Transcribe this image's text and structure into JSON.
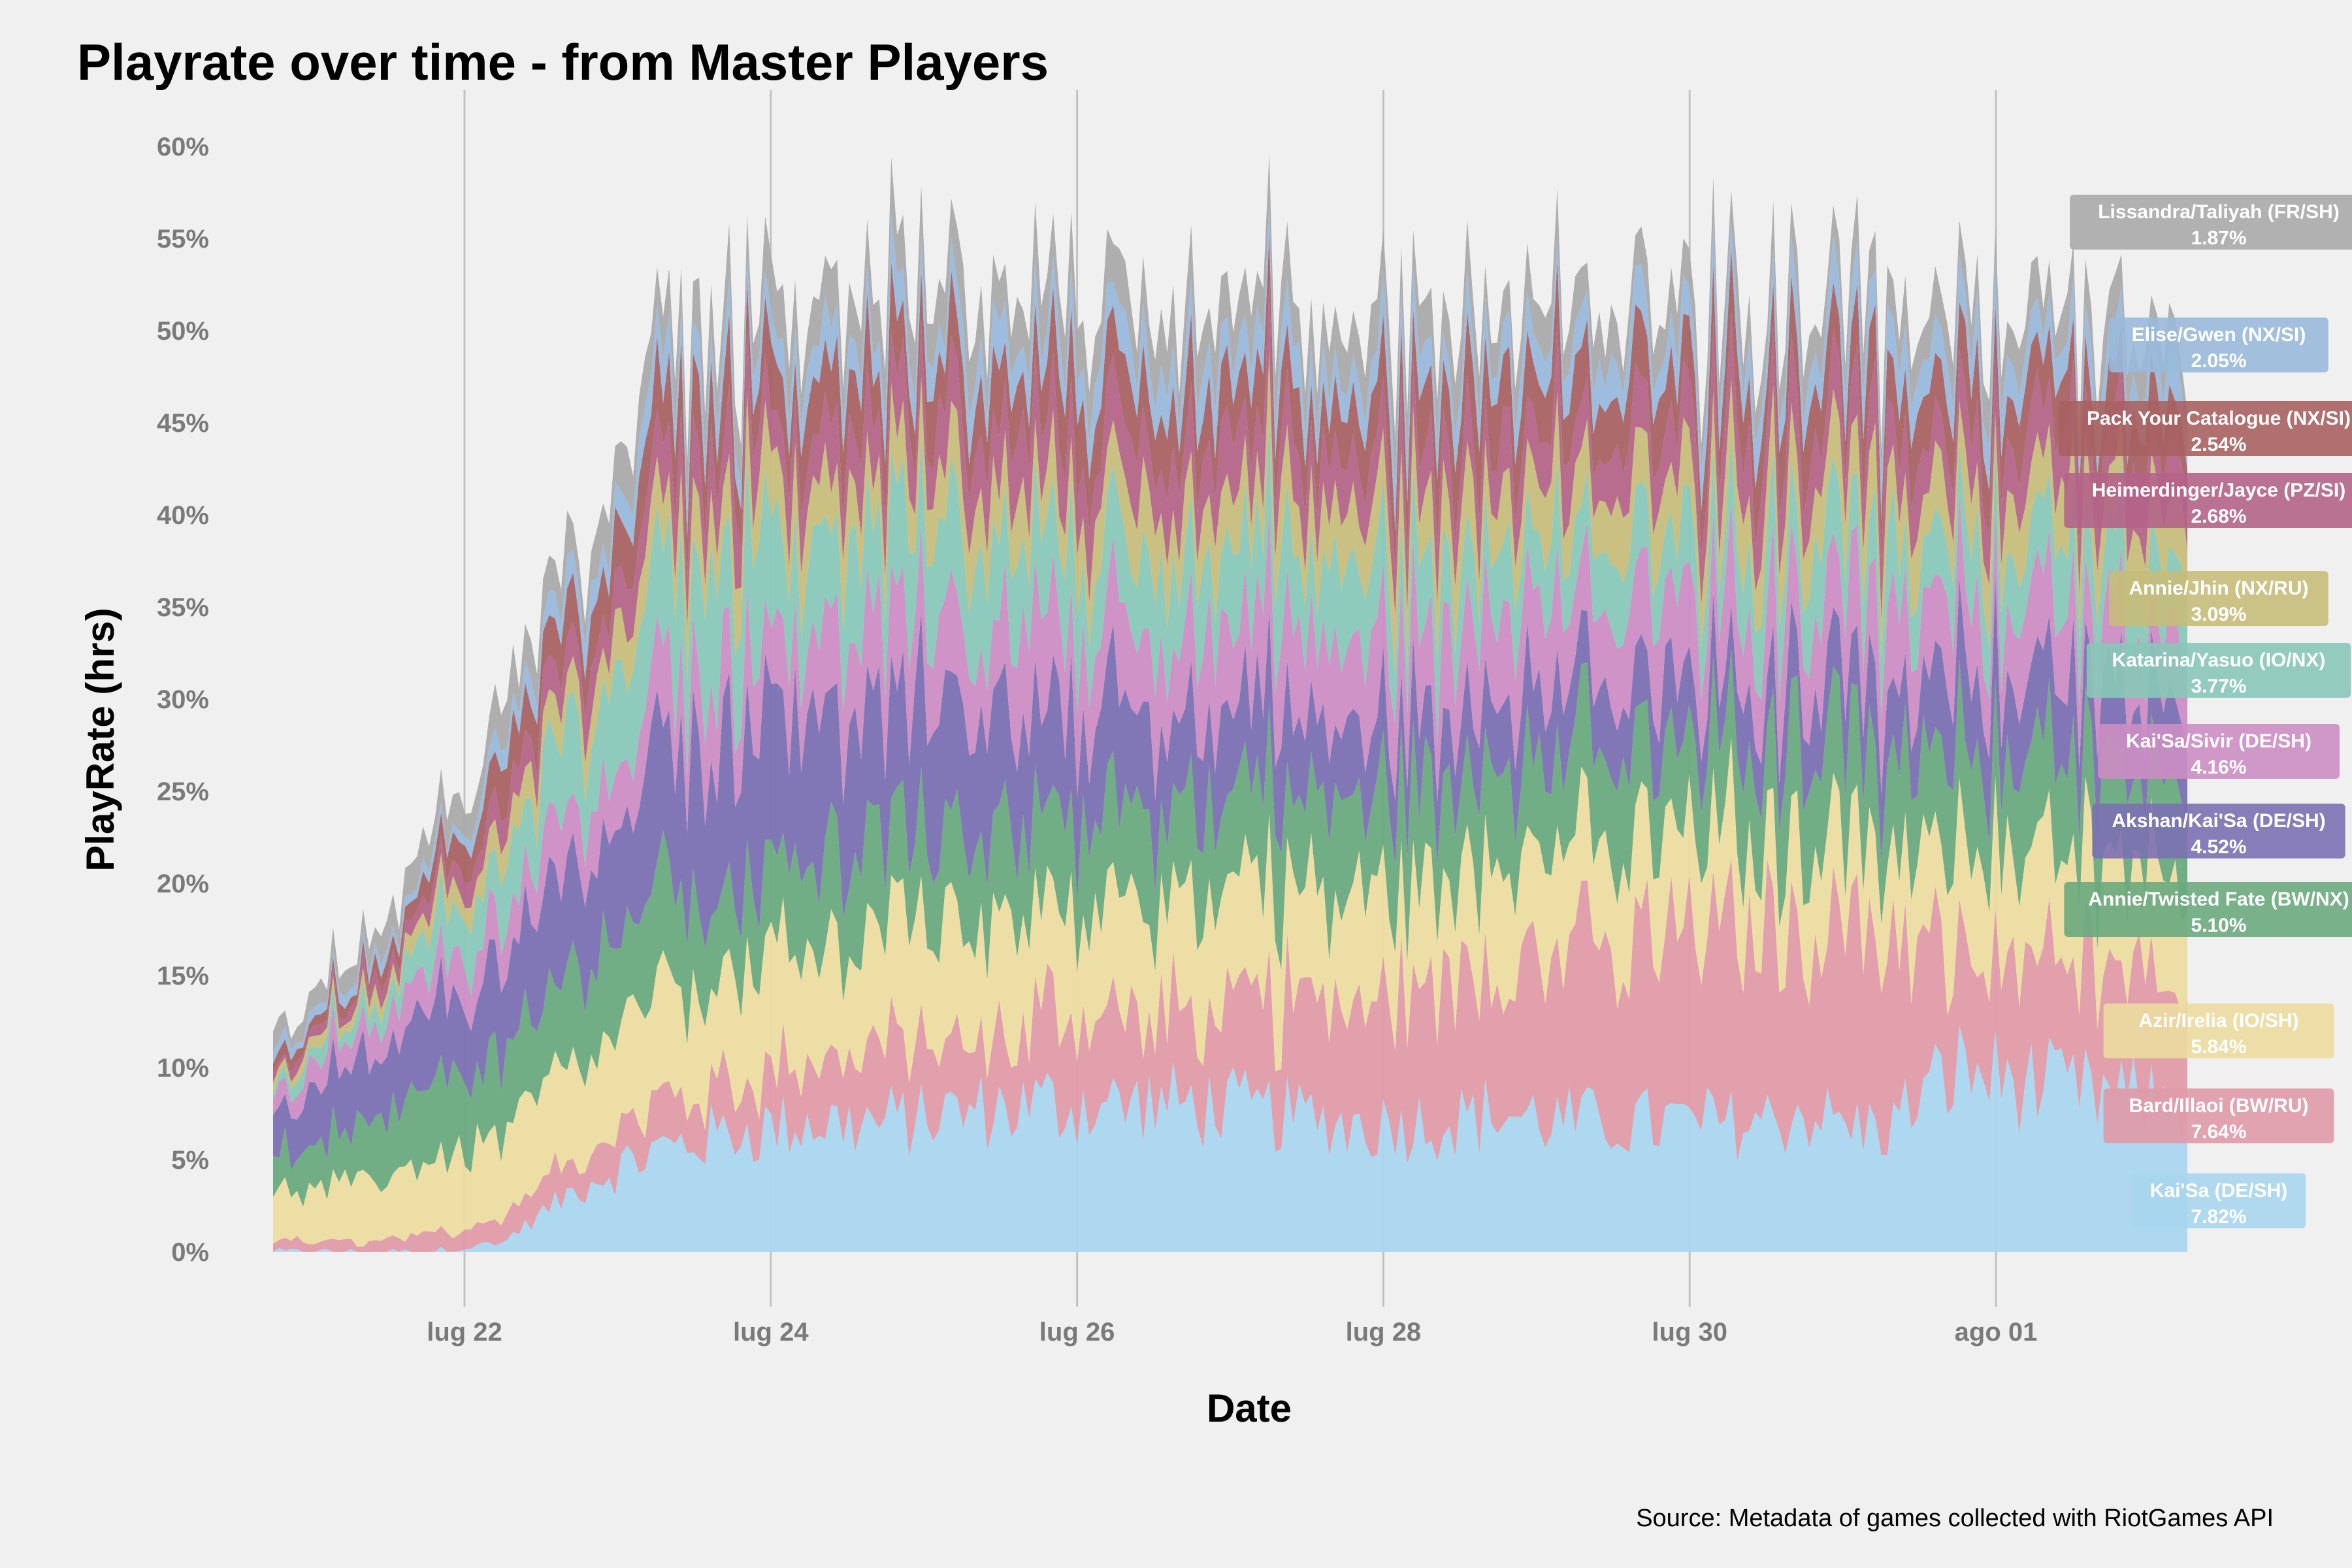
{
  "chart_data": {
    "type": "area",
    "title": "Playrate over time - from Master Players",
    "xlabel": "Date",
    "ylabel": "PlayRate (hrs)",
    "caption": "Source: Metadata of games collected with RiotGames API",
    "x_range": [
      "2021-07-20 18:00",
      "2021-08-02 06:00"
    ],
    "x_ticks": [
      {
        "date": "2021-07-22",
        "label": "lug 22"
      },
      {
        "date": "2021-07-24",
        "label": "lug 24"
      },
      {
        "date": "2021-07-26",
        "label": "lug 26"
      },
      {
        "date": "2021-07-28",
        "label": "lug 28"
      },
      {
        "date": "2021-07-30",
        "label": "lug 30"
      },
      {
        "date": "2021-08-01",
        "label": "ago 01"
      }
    ],
    "y_ticks": [
      0,
      5,
      10,
      15,
      20,
      25,
      30,
      35,
      40,
      45,
      50,
      55,
      60
    ],
    "y_tick_labels": [
      "0%",
      "5%",
      "10%",
      "15%",
      "20%",
      "25%",
      "30%",
      "35%",
      "40%",
      "45%",
      "50%",
      "55%",
      "60%"
    ],
    "ylim": [
      0,
      60
    ],
    "grid": "vertical",
    "legend": "labels at right end of each band",
    "x": [
      "2021-07-20 18:00",
      "2021-07-21 06:00",
      "2021-07-21 18:00",
      "2021-07-22 06:00",
      "2021-07-22 18:00",
      "2021-07-23 06:00",
      "2021-07-23 18:00",
      "2021-07-24 06:00",
      "2021-07-24 18:00",
      "2021-07-25 06:00",
      "2021-07-25 18:00",
      "2021-07-26 06:00",
      "2021-07-26 18:00",
      "2021-07-27 06:00",
      "2021-07-27 18:00",
      "2021-07-28 06:00",
      "2021-07-28 18:00",
      "2021-07-29 06:00",
      "2021-07-29 18:00",
      "2021-07-30 06:00",
      "2021-07-30 18:00",
      "2021-07-31 06:00",
      "2021-07-31 18:00",
      "2021-08-01 06:00",
      "2021-08-02 06:00"
    ],
    "series": [
      {
        "name": "Kai'Sa (DE/SH)",
        "label_value": "7.82%",
        "color": "#a9d6ee",
        "text_color": "#ffffff",
        "values": [
          0,
          0,
          0,
          0.5,
          3.5,
          5.5,
          6.5,
          7.0,
          7.0,
          7.5,
          8.0,
          8.0,
          8.0,
          7.5,
          7.0,
          7.0,
          7.5,
          7.0,
          7.0,
          7.0,
          7.5,
          6.5,
          10.0,
          9.0,
          7.8
        ]
      },
      {
        "name": "Bard/Illaoi (BW/RU)",
        "label_value": "7.64%",
        "color": "#e09aa8",
        "text_color": "#ffffff",
        "values": [
          0.5,
          0.5,
          0.8,
          1.5,
          2.0,
          2.5,
          3.0,
          3.5,
          4.0,
          4.0,
          4.5,
          4.5,
          5.0,
          6.0,
          6.5,
          8.0,
          8.5,
          9.0,
          9.5,
          10.0,
          10.5,
          11.0,
          5.5,
          6.5,
          7.6
        ]
      },
      {
        "name": "Azir/Irelia (IO/SH)",
        "label_value": "5.84%",
        "color": "#ecdca0",
        "text_color": "#ffffff",
        "values": [
          2.5,
          3.0,
          4.0,
          4.5,
          5.0,
          5.5,
          6.0,
          6.0,
          6.5,
          6.5,
          6.5,
          6.0,
          6.0,
          6.0,
          6.0,
          6.0,
          5.5,
          5.5,
          5.5,
          5.5,
          5.0,
          4.5,
          5.5,
          6.0,
          5.8
        ]
      },
      {
        "name": "Annie/Twisted Fate (BW/NX)",
        "label_value": "5.10%",
        "color": "#6aaa7e",
        "text_color": "#ffffff",
        "values": [
          2.0,
          3.0,
          4.0,
          4.5,
          5.0,
          5.0,
          5.0,
          5.0,
          5.0,
          5.0,
          5.0,
          5.0,
          5.0,
          5.0,
          5.0,
          5.0,
          5.0,
          5.0,
          5.0,
          5.0,
          5.0,
          4.5,
          5.0,
          5.0,
          5.1
        ]
      },
      {
        "name": "Akshan/Kai'Sa (DE/SH)",
        "label_value": "4.52%",
        "color": "#7b70b2",
        "text_color": "#ffffff",
        "values": [
          2.0,
          3.5,
          4.0,
          4.5,
          5.5,
          7.5,
          8.0,
          7.5,
          7.0,
          6.5,
          6.0,
          5.5,
          5.0,
          4.5,
          4.0,
          3.5,
          3.5,
          3.5,
          3.5,
          3.5,
          3.5,
          3.5,
          4.0,
          4.5,
          4.5
        ]
      },
      {
        "name": "Kai'Sa/Sivir (DE/SH)",
        "label_value": "4.16%",
        "color": "#cc8dc4",
        "text_color": "#ffffff",
        "values": [
          1.0,
          1.5,
          2.0,
          2.5,
          3.0,
          3.5,
          4.0,
          4.0,
          4.5,
          4.5,
          4.5,
          4.5,
          4.5,
          4.5,
          4.5,
          4.5,
          4.5,
          4.5,
          4.5,
          4.5,
          4.5,
          4.5,
          4.0,
          4.0,
          4.2
        ]
      },
      {
        "name": "Katarina/Yasuo (IO/NX)",
        "label_value": "3.77%",
        "color": "#88c8b8",
        "text_color": "#ffffff",
        "values": [
          0.5,
          1.0,
          2.0,
          3.0,
          4.5,
          5.5,
          6.0,
          5.5,
          5.0,
          5.0,
          4.5,
          4.5,
          4.0,
          4.0,
          4.0,
          3.5,
          3.5,
          3.5,
          3.5,
          3.5,
          3.5,
          3.5,
          3.5,
          3.5,
          3.8
        ]
      },
      {
        "name": "Annie/Jhin (NX/RU)",
        "label_value": "3.09%",
        "color": "#c6bd7a",
        "text_color": "#ffffff",
        "values": [
          0.5,
          0.5,
          1.0,
          1.5,
          2.0,
          2.5,
          3.0,
          3.0,
          3.0,
          3.0,
          3.0,
          3.0,
          3.0,
          3.0,
          3.0,
          3.0,
          3.0,
          3.0,
          3.0,
          3.0,
          3.0,
          3.0,
          3.0,
          3.0,
          3.1
        ]
      },
      {
        "name": "Heimerdinger/Jayce (PZ/SI)",
        "label_value": "2.68%",
        "color": "#b46488",
        "text_color": "#ffffff",
        "values": [
          0.5,
          0.5,
          1.0,
          1.5,
          2.0,
          2.5,
          3.0,
          3.0,
          3.0,
          3.0,
          3.0,
          3.0,
          3.0,
          3.0,
          3.0,
          3.0,
          3.0,
          3.0,
          3.0,
          3.0,
          3.0,
          3.0,
          3.0,
          2.8,
          2.7
        ]
      },
      {
        "name": "Pack Your Catalogue (NX/SI)",
        "label_value": "2.54%",
        "color": "#a86262",
        "text_color": "#ffffff",
        "values": [
          0.5,
          0.5,
          1.0,
          2.0,
          2.5,
          3.0,
          3.0,
          3.0,
          3.0,
          3.0,
          3.0,
          3.0,
          3.0,
          3.0,
          3.0,
          3.0,
          3.0,
          3.0,
          3.0,
          3.0,
          3.0,
          3.0,
          2.8,
          2.6,
          2.5
        ]
      },
      {
        "name": "Elise/Gwen (NX/SI)",
        "label_value": "2.05%",
        "color": "#99b9dc",
        "text_color": "#ffffff",
        "values": [
          0.5,
          0.5,
          0.5,
          1.0,
          1.5,
          2.0,
          2.0,
          2.0,
          2.0,
          2.0,
          2.0,
          2.0,
          2.0,
          2.0,
          2.0,
          2.0,
          2.0,
          2.0,
          2.0,
          2.0,
          2.0,
          2.0,
          2.0,
          2.0,
          2.1
        ]
      },
      {
        "name": "Lissandra/Taliyah (FR/SH)",
        "label_value": "1.87%",
        "color": "#aaaaaa",
        "text_color": "#ffffff",
        "values": [
          1.0,
          1.0,
          1.5,
          2.0,
          2.0,
          2.5,
          2.5,
          2.5,
          2.5,
          2.5,
          2.5,
          2.5,
          2.5,
          2.5,
          2.5,
          2.5,
          2.0,
          2.0,
          2.0,
          2.0,
          2.0,
          2.0,
          2.0,
          2.0,
          1.9
        ]
      }
    ]
  }
}
